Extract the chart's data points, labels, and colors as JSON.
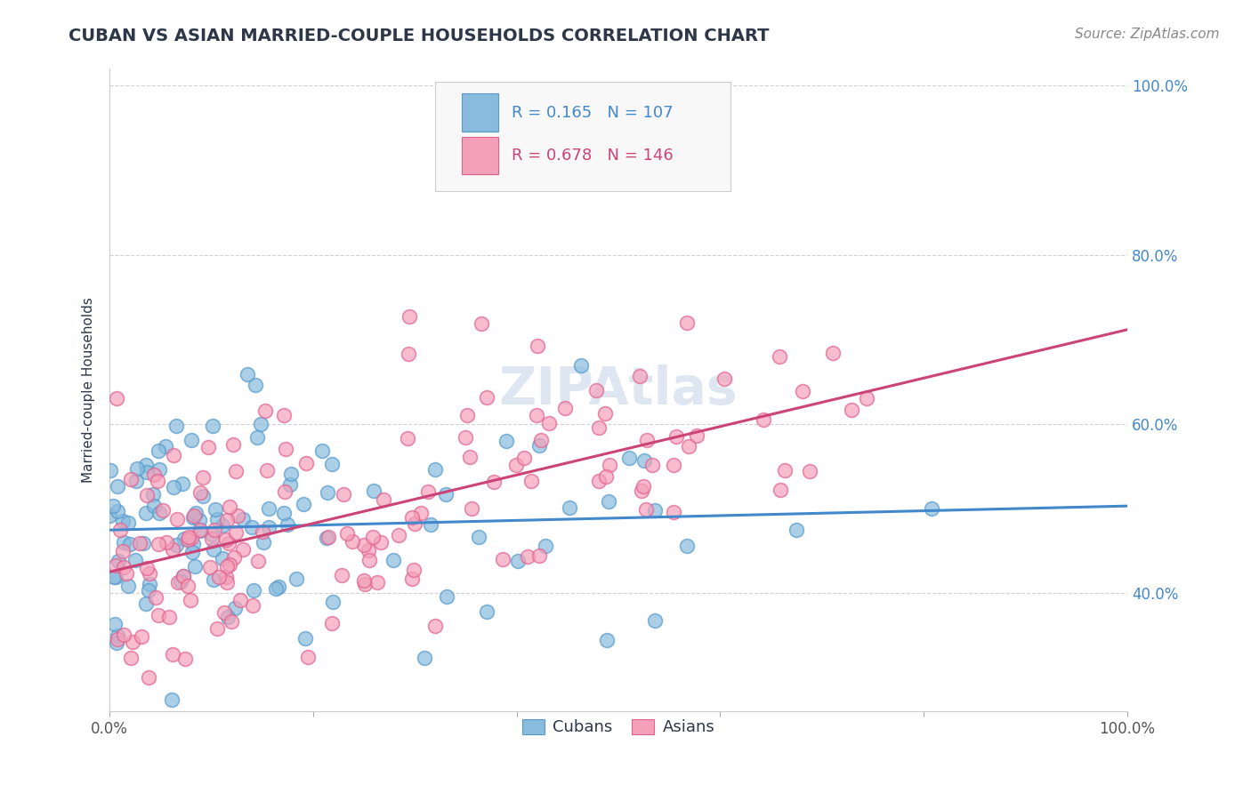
{
  "title": "CUBAN VS ASIAN MARRIED-COUPLE HOUSEHOLDS CORRELATION CHART",
  "source": "Source: ZipAtlas.com",
  "ylabel": "Married-couple Households",
  "cubans_R": 0.165,
  "cubans_N": 107,
  "asians_R": 0.678,
  "asians_N": 146,
  "xlim": [
    0.0,
    1.0
  ],
  "ylim": [
    0.26,
    1.02
  ],
  "right_ytick_positions": [
    1.0,
    0.8,
    0.6,
    0.4
  ],
  "right_ytick_labels": [
    "100.0%",
    "80.0%",
    "60.0%",
    "40.0%"
  ],
  "title_color": "#2d3748",
  "title_fontsize": 14,
  "source_fontsize": 11,
  "source_color": "#888888",
  "cubans_color": "#88bbdd",
  "asians_color": "#f4a0b8",
  "cubans_edge_color": "#5599cc",
  "asians_edge_color": "#e06090",
  "cubans_line_color": "#4488cc",
  "asians_line_color": "#cc4477",
  "ytick_color": "#4488cc",
  "watermark": "ZIPAtlas",
  "watermark_color": "#c8d8e8",
  "grid_color": "#cccccc",
  "grid_linestyle": "--",
  "background_color": "#ffffff",
  "legend_box_color": "#f8f8f8",
  "legend_border_color": "#cccccc",
  "cubans_line_start": 0.475,
  "cubans_line_end": 0.535,
  "asians_line_start": 0.445,
  "asians_line_end": 0.725
}
